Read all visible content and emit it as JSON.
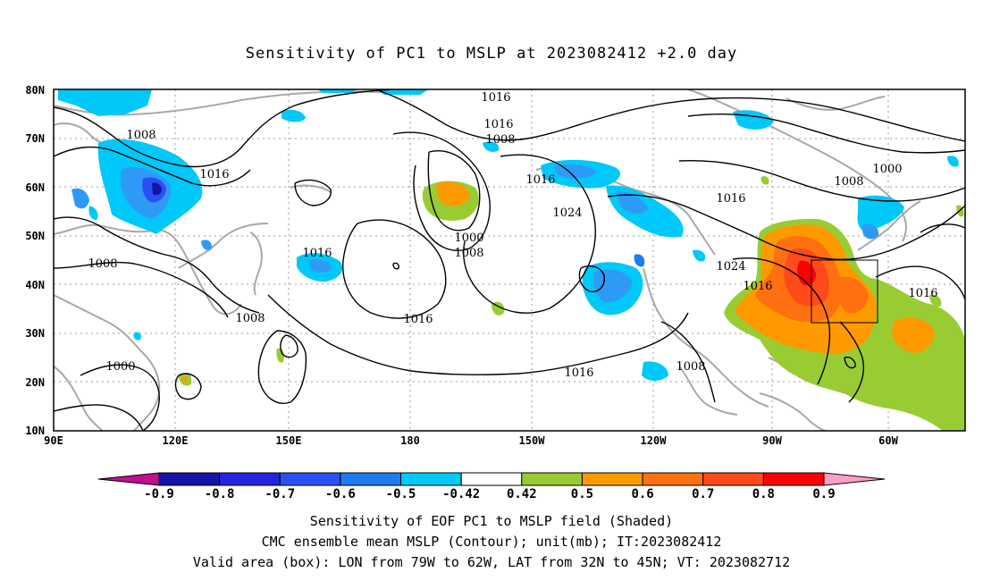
{
  "title": "Sensitivity of PC1 to MSLP at 2023082412 +2.0 day",
  "map": {
    "lat_labels": [
      "80N",
      "70N",
      "60N",
      "50N",
      "40N",
      "30N",
      "20N",
      "10N"
    ],
    "lon_labels": [
      "90E",
      "120E",
      "150E",
      "180",
      "150W",
      "120W",
      "90W",
      "60W"
    ],
    "contour_labels": [
      "1016",
      "1016",
      "1008",
      "1008",
      "1016",
      "1016",
      "1024",
      "1000",
      "1008",
      "1016",
      "1016",
      "1008",
      "1000",
      "1008",
      "1016",
      "1024",
      "1016",
      "1016",
      "1008",
      "1000"
    ],
    "valid_box": {
      "lon_range": [
        "79W",
        "62W"
      ],
      "lat_range": [
        "32N",
        "45N"
      ]
    },
    "shading_colors": {
      "neg_09": "#9a0c8e",
      "neg_08": "#1b1bb8",
      "neg_07": "#2c3cf2",
      "neg_06": "#1d6cf2",
      "neg_05": "#2f9af5",
      "neg_042": "#00c8f8",
      "zero": "#ffffff",
      "pos_042": "#99cc33",
      "pos_05": "#ff9900",
      "pos_06": "#ff7a10",
      "pos_07": "#ff5a1a",
      "pos_08": "#ff0000",
      "pos_09": "#ff90c0"
    }
  },
  "colorbar": {
    "ticks": [
      "-0.9",
      "-0.8",
      "-0.7",
      "-0.6",
      "-0.5",
      "-0.42",
      "0.42",
      "0.5",
      "0.6",
      "0.7",
      "0.8",
      "0.9"
    ],
    "colors": [
      "#1414a8",
      "#2424e0",
      "#2a50f5",
      "#1c7cf0",
      "#00c8f8",
      "#ffffff",
      "#99cc33",
      "#ff9900",
      "#ff7010",
      "#ff4a1a",
      "#ff0000"
    ],
    "end_low": "#c0108f",
    "end_high": "#ff9dc8"
  },
  "captions": {
    "line1": "Sensitivity of EOF PC1 to MSLP field (Shaded)",
    "line2": "CMC ensemble mean MSLP (Contour); unit(mb); IT:2023082412",
    "line3": "Valid area (box): LON from 79W to 62W, LAT from 32N to 45N; VT: 2023082712"
  }
}
